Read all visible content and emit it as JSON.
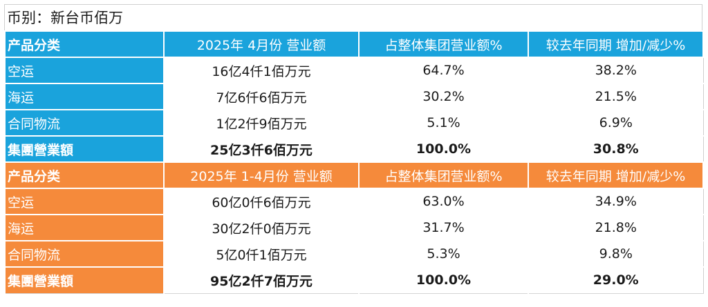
{
  "currency_note": "币别：新台币佰万",
  "sections": [
    {
      "theme": "blue",
      "header": [
        "产品分类",
        "2025年 4月份 营业额",
        "占整体集团营业额%",
        "较去年同期 增加/减少%"
      ],
      "rows": [
        [
          "空运",
          "16亿4仟1佰万元",
          "64.7%",
          "38.2%"
        ],
        [
          "海运",
          "7亿6仟6佰万元",
          "30.2%",
          "21.5%"
        ],
        [
          "合同物流",
          "1亿2仟9佰万元",
          "5.1%",
          "6.9%"
        ]
      ],
      "total": [
        "集團營業額",
        "25亿3仟6佰万元",
        "100.0%",
        "30.8%"
      ]
    },
    {
      "theme": "orange",
      "header": [
        "产品分类",
        "2025年 1-4月份 营业额",
        "占整体集团营业额%",
        "较去年同期 增加/减少%"
      ],
      "rows": [
        [
          "空运",
          "60亿0仟6佰万元",
          "63.0%",
          "34.9%"
        ],
        [
          "海运",
          "30亿2仟0佰万元",
          "31.7%",
          "21.8%"
        ],
        [
          "合同物流",
          "5亿0仟1佰万元",
          "5.3%",
          "9.8%"
        ]
      ],
      "total": [
        "集團營業額",
        "95亿2仟7佰万元",
        "100.0%",
        "29.0%"
      ]
    }
  ],
  "colors": {
    "blue": "#1aa3dc",
    "orange": "#f58a3b"
  }
}
